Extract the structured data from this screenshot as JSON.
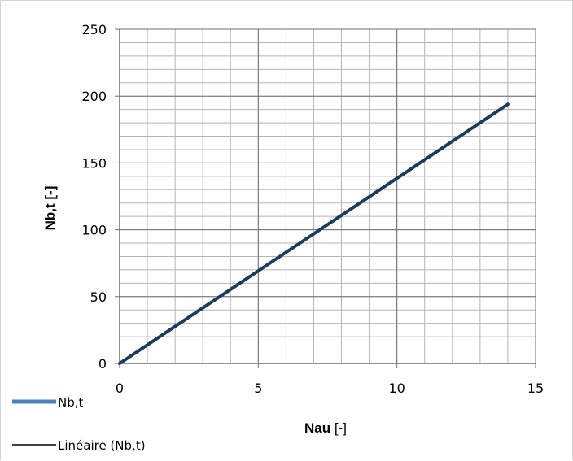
{
  "chart_data": {
    "type": "line",
    "xlabel_bold": "Nau",
    "xlabel_unit": " [-]",
    "ylabel": "Nb,t [-]",
    "xlim": [
      0,
      15
    ],
    "ylim": [
      0,
      250
    ],
    "x_ticks": [
      0,
      5,
      10,
      15
    ],
    "y_ticks": [
      0,
      50,
      100,
      150,
      200,
      250
    ],
    "grid": true,
    "legend_position": "bottom-left",
    "series": [
      {
        "name": "Nb,t",
        "color": "#1f3864",
        "x": [
          0,
          2,
          4,
          6,
          8,
          10,
          12,
          14
        ],
        "y": [
          0,
          27.7,
          55.4,
          83.1,
          110.8,
          138.5,
          166.2,
          193.9
        ]
      }
    ],
    "legend": [
      {
        "label": "Nb,t",
        "color": "#4f81bd"
      },
      {
        "label": "Linéaire (Nb,t)",
        "color": "#000000"
      }
    ]
  }
}
